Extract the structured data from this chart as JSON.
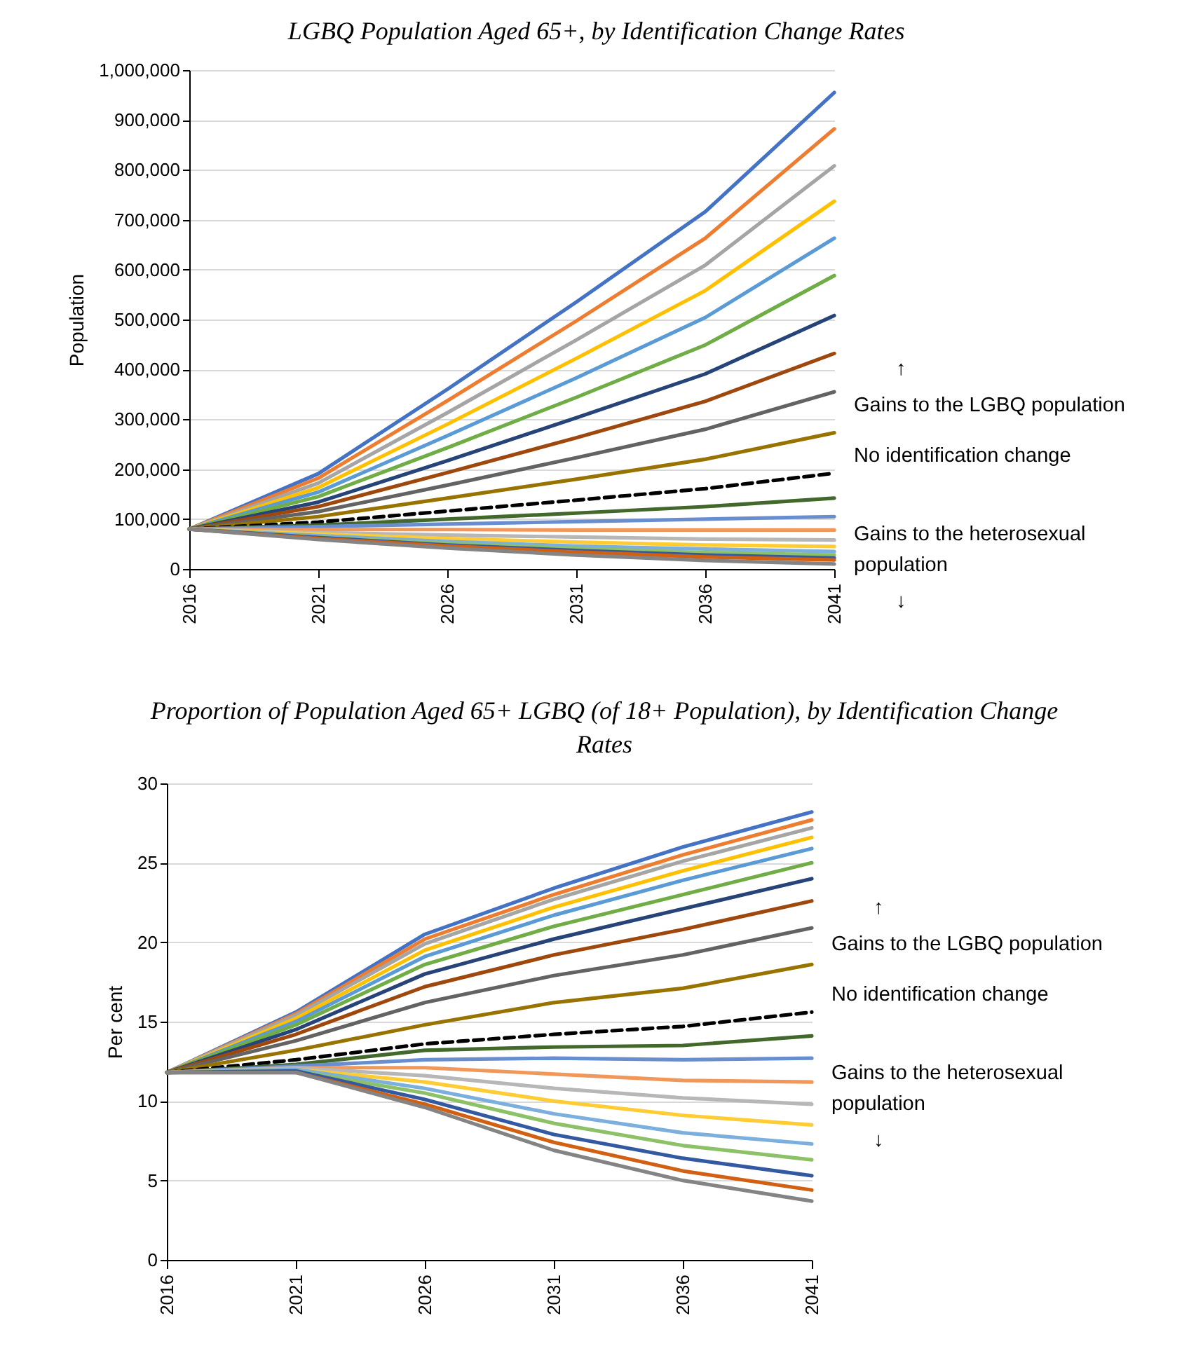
{
  "chart_data": [
    {
      "type": "line",
      "title": "LGBQ Population Aged 65+, by Identification Change Rates",
      "ylabel": "Population",
      "x": [
        2016,
        2021,
        2026,
        2031,
        2036,
        2041
      ],
      "xlim": [
        2016,
        2041
      ],
      "xticks": [
        2016,
        2021,
        2026,
        2031,
        2036,
        2041
      ],
      "ylim": [
        0,
        1000000
      ],
      "yticks": [
        0,
        {
          "value": 100000,
          "label": "100,000"
        },
        {
          "value": 200000,
          "label": "200,000"
        },
        {
          "value": 300000,
          "label": "300,000"
        },
        {
          "value": 400000,
          "label": "400,000"
        },
        {
          "value": 500000,
          "label": "500,000"
        },
        {
          "value": 600000,
          "label": "600,000"
        },
        {
          "value": 700000,
          "label": "700,000"
        },
        {
          "value": 800000,
          "label": "800,000"
        },
        {
          "value": 900000,
          "label": "900,000"
        },
        {
          "value": 1000000,
          "label": "1,000,000"
        }
      ],
      "grid": "y",
      "line_style": "solid",
      "series": [
        {
          "color": "#4472c4",
          "values": [
            80000,
            191000,
            360000,
            535000,
            716000,
            955000
          ]
        },
        {
          "color": "#ed7d31",
          "values": [
            80000,
            182000,
            337000,
            497000,
            663000,
            882000
          ]
        },
        {
          "color": "#a5a5a5",
          "values": [
            80000,
            172000,
            313000,
            459000,
            609000,
            808000
          ]
        },
        {
          "color": "#ffc000",
          "values": [
            80000,
            163000,
            290000,
            422000,
            558000,
            737000
          ]
        },
        {
          "color": "#5b9bd5",
          "values": [
            80000,
            154000,
            267000,
            383000,
            504000,
            663000
          ]
        },
        {
          "color": "#70ad47",
          "values": [
            80000,
            145000,
            243000,
            344000,
            449000,
            588000
          ]
        },
        {
          "color": "#264478",
          "values": [
            80000,
            134000,
            217000,
            303000,
            391000,
            508000
          ]
        },
        {
          "color": "#9e480e",
          "values": [
            80000,
            125000,
            193000,
            263000,
            336000,
            432000
          ]
        },
        {
          "color": "#636363",
          "values": [
            80000,
            115000,
            168000,
            223000,
            280000,
            355000
          ]
        },
        {
          "color": "#997300",
          "values": [
            80000,
            105000,
            142000,
            180000,
            220000,
            273000
          ]
        },
        {
          "color": "#000000",
          "line_style": "dashed",
          "values": [
            80000,
            94000,
            116000,
            138000,
            161000,
            192000
          ]
        },
        {
          "color": "#43682b",
          "values": [
            80000,
            88000,
            100000,
            112000,
            125000,
            142000
          ]
        },
        {
          "color": "#698ed0",
          "values": [
            80000,
            85000,
            90000,
            95000,
            100000,
            105000
          ]
        },
        {
          "color": "#f1975a",
          "values": [
            80000,
            79000,
            79000,
            78000,
            78000,
            78000
          ]
        },
        {
          "color": "#b7b7b7",
          "values": [
            80000,
            73000,
            68000,
            64000,
            60000,
            58000
          ]
        },
        {
          "color": "#ffcd33",
          "values": [
            80000,
            70000,
            61000,
            54000,
            48000,
            45000
          ]
        },
        {
          "color": "#7cafdd",
          "values": [
            80000,
            67000,
            55000,
            46000,
            40000,
            35000
          ]
        },
        {
          "color": "#8cc168",
          "values": [
            80000,
            64000,
            51000,
            41000,
            33000,
            28000
          ]
        },
        {
          "color": "#335aa1",
          "values": [
            80000,
            63000,
            48000,
            37000,
            28000,
            22000
          ]
        },
        {
          "color": "#d26012",
          "values": [
            80000,
            61000,
            46000,
            34000,
            24000,
            18000
          ]
        },
        {
          "color": "#848484",
          "values": [
            80000,
            59000,
            42000,
            28000,
            17000,
            10000
          ]
        }
      ],
      "annotations": [
        "↑",
        "Gains to the LGBQ population",
        {
          "text": "No identification change",
          "x": 2041,
          "y": 192000
        },
        "Gains to the heterosexual population",
        "↓"
      ]
    },
    {
      "type": "line",
      "title": "Proportion of Population Aged 65+ LGBQ (of 18+ Population), by Identification Change Rates",
      "ylabel": "Per cent",
      "x": [
        2016,
        2021,
        2026,
        2031,
        2036,
        2041
      ],
      "xlim": [
        2016,
        2041
      ],
      "xticks": [
        2016,
        2021,
        2026,
        2031,
        2036,
        2041
      ],
      "ylim": [
        0,
        30
      ],
      "yticks": [
        0,
        5,
        10,
        15,
        20,
        25,
        30
      ],
      "grid": "y",
      "line_style": "solid",
      "series": [
        {
          "color": "#4472c4",
          "values": [
            11.8,
            15.6,
            20.5,
            23.4,
            26.0,
            28.2
          ]
        },
        {
          "color": "#ed7d31",
          "values": [
            11.8,
            15.5,
            20.2,
            23.0,
            25.5,
            27.7
          ]
        },
        {
          "color": "#a5a5a5",
          "values": [
            11.8,
            15.4,
            19.9,
            22.7,
            25.1,
            27.2
          ]
        },
        {
          "color": "#ffc000",
          "values": [
            11.8,
            15.2,
            19.5,
            22.2,
            24.5,
            26.6
          ]
        },
        {
          "color": "#5b9bd5",
          "values": [
            11.8,
            15.0,
            19.1,
            21.7,
            23.9,
            25.9
          ]
        },
        {
          "color": "#70ad47",
          "values": [
            11.8,
            14.8,
            18.6,
            21.0,
            23.0,
            25.0
          ]
        },
        {
          "color": "#264478",
          "values": [
            11.8,
            14.5,
            18.0,
            20.2,
            22.1,
            24.0
          ]
        },
        {
          "color": "#9e480e",
          "values": [
            11.8,
            14.2,
            17.2,
            19.2,
            20.8,
            22.6
          ]
        },
        {
          "color": "#636363",
          "values": [
            11.8,
            13.8,
            16.2,
            17.9,
            19.2,
            20.9
          ]
        },
        {
          "color": "#997300",
          "values": [
            11.8,
            13.2,
            14.8,
            16.2,
            17.1,
            18.6
          ]
        },
        {
          "color": "#000000",
          "line_style": "dashed",
          "values": [
            11.8,
            12.6,
            13.6,
            14.2,
            14.7,
            15.6
          ]
        },
        {
          "color": "#43682b",
          "values": [
            11.8,
            12.3,
            13.2,
            13.4,
            13.5,
            14.1
          ]
        },
        {
          "color": "#698ed0",
          "values": [
            11.8,
            12.2,
            12.6,
            12.7,
            12.6,
            12.7
          ]
        },
        {
          "color": "#f1975a",
          "values": [
            11.8,
            12.1,
            12.1,
            11.7,
            11.3,
            11.2
          ]
        },
        {
          "color": "#b7b7b7",
          "values": [
            11.8,
            12.1,
            11.6,
            10.8,
            10.2,
            9.8
          ]
        },
        {
          "color": "#ffcd33",
          "values": [
            11.8,
            12.0,
            11.2,
            10.0,
            9.1,
            8.5
          ]
        },
        {
          "color": "#7cafdd",
          "values": [
            11.8,
            12.0,
            10.8,
            9.2,
            8.0,
            7.3
          ]
        },
        {
          "color": "#8cc168",
          "values": [
            11.8,
            11.9,
            10.5,
            8.6,
            7.2,
            6.3
          ]
        },
        {
          "color": "#335aa1",
          "values": [
            11.8,
            11.9,
            10.1,
            7.9,
            6.4,
            5.3
          ]
        },
        {
          "color": "#d26012",
          "values": [
            11.8,
            11.8,
            9.8,
            7.4,
            5.6,
            4.4
          ]
        },
        {
          "color": "#848484",
          "values": [
            11.8,
            11.8,
            9.6,
            6.9,
            5.0,
            3.7
          ]
        }
      ],
      "annotations": [
        "↑",
        "Gains to the LGBQ population",
        {
          "text": "No identification change",
          "x": 2041,
          "y": 15.6
        },
        "Gains to the heterosexual population",
        "↓"
      ]
    }
  ]
}
